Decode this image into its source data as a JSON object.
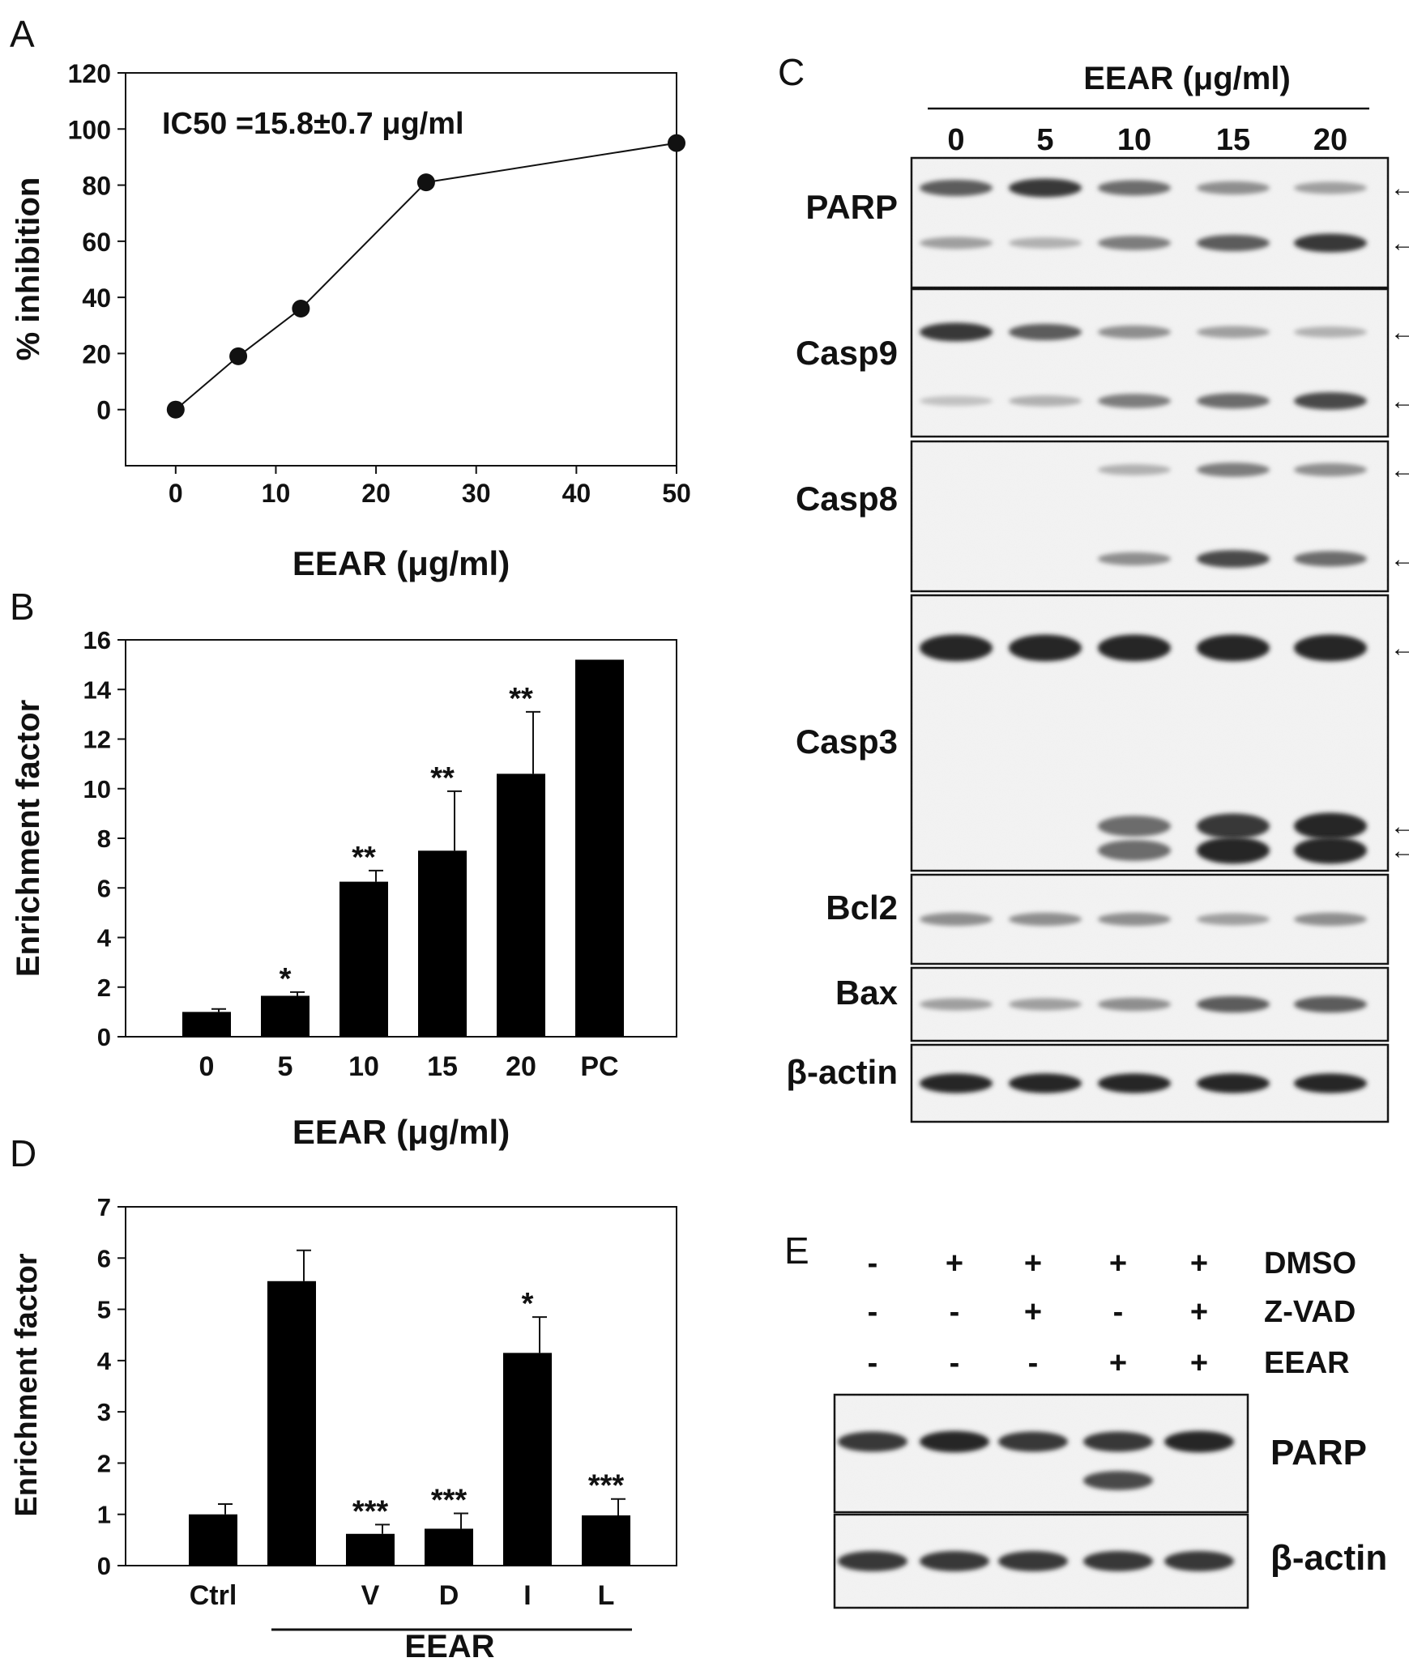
{
  "panels": {
    "A": {
      "letter": "A",
      "ic50": "IC50 =15.8±0.7 μg/ml",
      "chart_data": {
        "type": "line",
        "xlabel": "EEAR (μg/ml)",
        "ylabel": "% inhibition",
        "x": [
          0,
          6.25,
          12.5,
          25,
          50
        ],
        "y": [
          0,
          19,
          36,
          81,
          95
        ],
        "xlim": [
          -5,
          50
        ],
        "ylim": [
          -20,
          120
        ],
        "xticks": [
          0,
          10,
          20,
          30,
          40,
          50
        ],
        "yticks": [
          0,
          20,
          40,
          60,
          80,
          100,
          120
        ],
        "grid": false
      }
    },
    "B": {
      "letter": "B",
      "chart_data": {
        "type": "bar",
        "xlabel": "EEAR (μg/ml)",
        "ylabel": "Enrichment  factor",
        "categories": [
          "0",
          "5",
          "10",
          "15",
          "20",
          "PC"
        ],
        "values": [
          1.0,
          1.65,
          6.25,
          7.5,
          10.6,
          15.2
        ],
        "errors": [
          0.12,
          0.15,
          0.45,
          2.4,
          2.5,
          0
        ],
        "annotations": [
          "",
          "*",
          "**",
          "**",
          "**",
          ""
        ],
        "ylim": [
          0,
          16
        ],
        "yticks": [
          0,
          2,
          4,
          6,
          8,
          10,
          12,
          14,
          16
        ],
        "grid": false
      }
    },
    "C": {
      "letter": "C",
      "header": "EEAR (μg/ml)",
      "lanes": [
        "0",
        "5",
        "10",
        "15",
        "20"
      ],
      "blots": [
        {
          "label": "PARP",
          "bands": [
            [
              0.7,
              0.9,
              0.6,
              0.4,
              0.3
            ],
            [
              0.3,
              0.2,
              0.5,
              0.7,
              0.9
            ]
          ]
        },
        {
          "label": "Casp9",
          "bands": [
            [
              0.9,
              0.7,
              0.4,
              0.3,
              0.2
            ],
            [
              0.1,
              0.2,
              0.5,
              0.6,
              0.8
            ]
          ]
        },
        {
          "label": "Casp8",
          "bands": [
            [
              0.0,
              0.0,
              0.2,
              0.5,
              0.4
            ],
            [
              0.0,
              0.0,
              0.4,
              0.8,
              0.6
            ]
          ]
        },
        {
          "label": "Casp3",
          "bands": [
            [
              1.0,
              1.0,
              1.0,
              1.0,
              1.0
            ],
            [
              0.0,
              0.0,
              0.6,
              0.9,
              1.0
            ],
            [
              0.0,
              0.0,
              0.6,
              1.0,
              1.0
            ]
          ]
        },
        {
          "label": "Bcl2",
          "bands": [
            [
              0.4,
              0.4,
              0.4,
              0.3,
              0.4
            ]
          ]
        },
        {
          "label": "Bax",
          "bands": [
            [
              0.3,
              0.3,
              0.4,
              0.7,
              0.7
            ]
          ]
        },
        {
          "label": "β-actin",
          "bands": [
            [
              1.0,
              1.0,
              1.0,
              1.0,
              1.0
            ]
          ]
        }
      ]
    },
    "D": {
      "letter": "D",
      "group_label": "EEAR",
      "chart_data": {
        "type": "bar",
        "xlabel": "EEAR",
        "ylabel": "Enrichment factor",
        "categories": [
          "Ctrl",
          "",
          "V",
          "D",
          "I",
          "L"
        ],
        "values": [
          1.0,
          5.55,
          0.62,
          0.72,
          4.15,
          0.98
        ],
        "errors": [
          0.2,
          0.6,
          0.18,
          0.3,
          0.7,
          0.32
        ],
        "annotations": [
          "",
          "",
          "***",
          "***",
          "*",
          "***"
        ],
        "ylim": [
          0,
          7
        ],
        "yticks": [
          0,
          1,
          2,
          3,
          4,
          5,
          6,
          7
        ],
        "grid": false
      }
    },
    "E": {
      "letter": "E",
      "treatments": [
        {
          "label": "DMSO",
          "signs": [
            "-",
            "+",
            "+",
            "+",
            "+"
          ]
        },
        {
          "label": "Z-VAD",
          "signs": [
            "-",
            "-",
            "+",
            "-",
            "+"
          ]
        },
        {
          "label": "EEAR",
          "signs": [
            "-",
            "-",
            "-",
            "+",
            "+"
          ]
        }
      ],
      "blots": [
        {
          "label": "PARP",
          "bands": [
            [
              0.9,
              1.0,
              0.9,
              0.9,
              1.0
            ],
            [
              0.0,
              0.0,
              0.0,
              0.8,
              0.0
            ]
          ]
        },
        {
          "label": "β-actin",
          "bands": [
            [
              0.9,
              0.9,
              0.9,
              0.9,
              0.9
            ]
          ]
        }
      ]
    }
  }
}
